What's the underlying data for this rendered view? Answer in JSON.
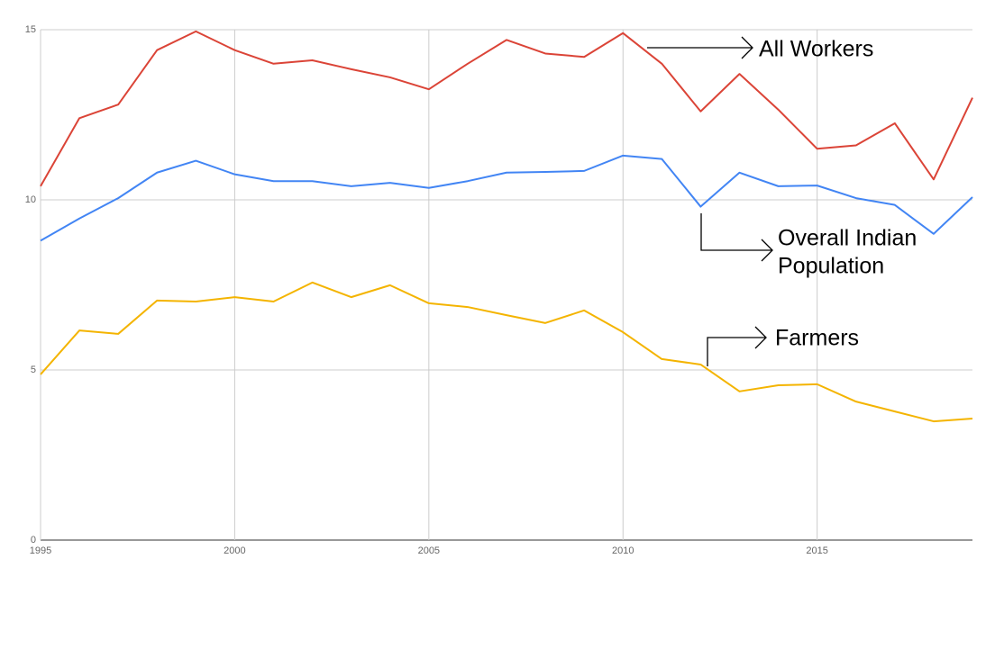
{
  "chart_data": {
    "type": "line",
    "x": [
      1995,
      1996,
      1997,
      1998,
      1999,
      2000,
      2001,
      2002,
      2003,
      2004,
      2005,
      2006,
      2007,
      2008,
      2009,
      2010,
      2011,
      2012,
      2013,
      2014,
      2015,
      2016,
      2017,
      2018,
      2019
    ],
    "series": [
      {
        "color": "#db4437",
        "values": [
          10.4,
          12.4,
          12.8,
          14.4,
          14.95,
          14.4,
          14.0,
          14.1,
          13.84,
          13.6,
          13.25,
          14.0,
          14.7,
          14.3,
          14.2,
          14.9,
          14.0,
          12.6,
          13.7,
          12.65,
          11.5,
          11.6,
          12.25,
          10.6,
          13.0
        ]
      },
      {
        "color": "#4285f4",
        "values": [
          8.8,
          9.45,
          10.05,
          10.8,
          11.15,
          10.75,
          10.55,
          10.55,
          10.4,
          10.5,
          10.35,
          10.55,
          10.8,
          10.82,
          10.85,
          11.3,
          11.2,
          9.8,
          10.8,
          10.4,
          10.42,
          10.05,
          9.85,
          9.0,
          10.08
        ]
      },
      {
        "color": "#f4b400",
        "values": [
          4.87,
          6.16,
          6.06,
          7.04,
          7.01,
          7.14,
          7.01,
          7.57,
          7.14,
          7.49,
          6.96,
          6.85,
          6.61,
          6.38,
          6.75,
          6.11,
          5.32,
          5.16,
          4.37,
          4.55,
          4.58,
          4.07,
          3.78,
          3.49,
          3.57
        ]
      }
    ],
    "xlim": [
      1995,
      2019
    ],
    "xticks": [
      1995,
      2000,
      2005,
      2010,
      2015
    ],
    "ylim": [
      0,
      15
    ],
    "yticks": [
      0,
      5,
      10,
      15
    ],
    "grid": true,
    "annotations": [
      {
        "lines": [
          "All Workers"
        ]
      },
      {
        "lines": [
          "Overall Indian",
          "Population"
        ]
      },
      {
        "lines": [
          "Farmers"
        ]
      }
    ]
  }
}
